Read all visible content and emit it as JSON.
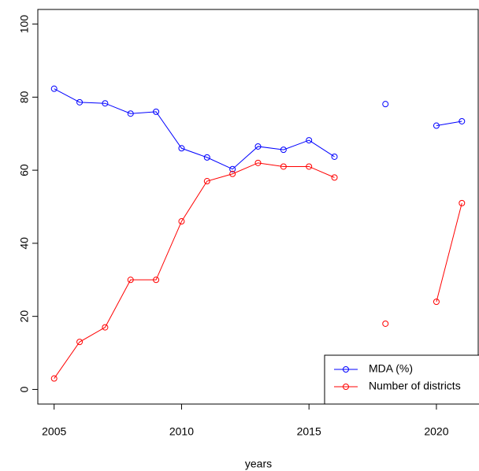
{
  "chart_data": {
    "type": "line",
    "x_label": "years",
    "x": [
      2005,
      2006,
      2007,
      2008,
      2009,
      2010,
      2011,
      2012,
      2013,
      2014,
      2015,
      2016,
      2017,
      2018,
      2019,
      2020,
      2021
    ],
    "series": [
      {
        "name": "MDA (%)",
        "color": "#0000ff",
        "values": [
          82.3,
          78.6,
          78.3,
          75.5,
          76,
          66,
          63.5,
          60.3,
          66.5,
          65.6,
          68.2,
          63.7,
          null,
          78.1,
          null,
          72.2,
          73.4
        ]
      },
      {
        "name": "Number of districts",
        "color": "#ff0000",
        "values": [
          3,
          13,
          17,
          30,
          30,
          46,
          57,
          59,
          62,
          61,
          61,
          58,
          null,
          18,
          null,
          24,
          51
        ]
      }
    ],
    "xlim": [
      2004.36,
      2021.64
    ],
    "xticks": [
      2005,
      2010,
      2015,
      2020
    ],
    "ylim": [
      -4,
      104
    ],
    "yticks": [
      0,
      20,
      40,
      60,
      80,
      100
    ],
    "legend": "bottom-right"
  }
}
